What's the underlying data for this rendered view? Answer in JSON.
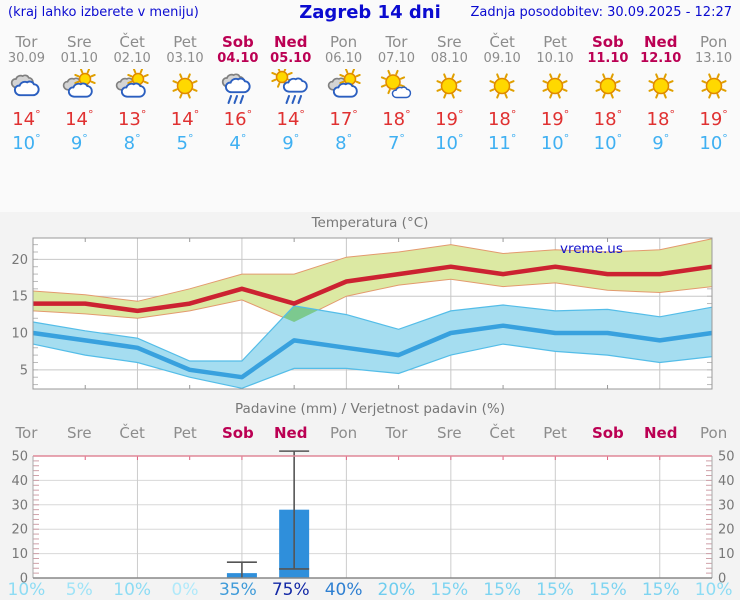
{
  "header": {
    "hint": "(kraj lahko izberete v meniju)",
    "title": "Zagreb 14 dni",
    "updated": "Zadnja posodobitev: 30.09.2025 - 12:27"
  },
  "colors": {
    "header_blue": "#0b0bd0",
    "weekday_gray": "#8c8c8c",
    "weekend_red": "#bb0053",
    "tmax_red": "#e03131",
    "tmin_blue": "#3fb0f2",
    "tmax_line": "#cc2231",
    "tmax_band_fill": "#dce9a3",
    "tmax_band_edge": "#e39a6e",
    "tmin_line": "#38a1de",
    "tmin_band_fill": "#a5ddf0",
    "tmin_band_edge": "#54bde8",
    "band_overlap_green": "#7cc98f",
    "bar_blue": "#2f8fdb",
    "whisker_gray": "#555555"
  },
  "forecast": {
    "days": [
      {
        "name": "Tor",
        "date": "30.09",
        "weekend": false,
        "icon": "cloudy",
        "tmax": "14",
        "tmin": "10"
      },
      {
        "name": "Sre",
        "date": "01.10",
        "weekend": false,
        "icon": "partly-cloudy",
        "tmax": "14",
        "tmin": "9"
      },
      {
        "name": "Čet",
        "date": "02.10",
        "weekend": false,
        "icon": "partly-cloudy",
        "tmax": "13",
        "tmin": "8"
      },
      {
        "name": "Pet",
        "date": "03.10",
        "weekend": false,
        "icon": "sunny",
        "tmax": "14",
        "tmin": "5"
      },
      {
        "name": "Sob",
        "date": "04.10",
        "weekend": true,
        "icon": "rain",
        "tmax": "16",
        "tmin": "4"
      },
      {
        "name": "Ned",
        "date": "05.10",
        "weekend": true,
        "icon": "sun-rain",
        "tmax": "14",
        "tmin": "9"
      },
      {
        "name": "Pon",
        "date": "06.10",
        "weekend": false,
        "icon": "partly-cloudy",
        "tmax": "17",
        "tmin": "8"
      },
      {
        "name": "Tor",
        "date": "07.10",
        "weekend": false,
        "icon": "mostly-sunny",
        "tmax": "18",
        "tmin": "7"
      },
      {
        "name": "Sre",
        "date": "08.10",
        "weekend": false,
        "icon": "sunny",
        "tmax": "19",
        "tmin": "10"
      },
      {
        "name": "Čet",
        "date": "09.10",
        "weekend": false,
        "icon": "sunny",
        "tmax": "18",
        "tmin": "11"
      },
      {
        "name": "Pet",
        "date": "10.10",
        "weekend": false,
        "icon": "sunny",
        "tmax": "19",
        "tmin": "10"
      },
      {
        "name": "Sob",
        "date": "11.10",
        "weekend": true,
        "icon": "sunny",
        "tmax": "18",
        "tmin": "10"
      },
      {
        "name": "Ned",
        "date": "12.10",
        "weekend": true,
        "icon": "sunny",
        "tmax": "18",
        "tmin": "9"
      },
      {
        "name": "Pon",
        "date": "13.10",
        "weekend": false,
        "icon": "sunny",
        "tmax": "19",
        "tmin": "10"
      }
    ]
  },
  "chart_data": [
    {
      "type": "line",
      "title": "Temperatura (°C)",
      "watermark": "vreme.us",
      "categories": [
        "Tor 30.09",
        "Sre 01.10",
        "Čet 02.10",
        "Pet 03.10",
        "Sob 04.10",
        "Ned 05.10",
        "Pon 06.10",
        "Tor 07.10",
        "Sre 08.10",
        "Čet 09.10",
        "Pet 10.10",
        "Sob 11.10",
        "Ned 12.10",
        "Pon 13.10"
      ],
      "ylim": [
        2.4,
        22.9
      ],
      "yticks": [
        5,
        10,
        15,
        20
      ],
      "grid": true,
      "series": [
        {
          "name": "Max temperatura",
          "values": [
            14,
            14,
            13,
            14,
            16,
            14,
            17,
            18,
            19,
            18,
            19,
            18,
            18,
            19
          ]
        },
        {
          "name": "Max razpon zgoraj",
          "values": [
            15.7,
            15.2,
            14.3,
            16.0,
            18.0,
            18.0,
            20.3,
            21.0,
            22.0,
            20.8,
            21.3,
            21.0,
            21.3,
            22.8
          ]
        },
        {
          "name": "Max razpon spodaj",
          "values": [
            13.0,
            12.6,
            12.0,
            13.0,
            14.5,
            11.5,
            15.0,
            16.5,
            17.3,
            16.3,
            16.8,
            15.8,
            15.5,
            16.3
          ]
        },
        {
          "name": "Min temperatura",
          "values": [
            10,
            9,
            8,
            5,
            4,
            9,
            8,
            7,
            10,
            11,
            10,
            10,
            9,
            10
          ]
        },
        {
          "name": "Min razpon zgoraj",
          "values": [
            11.5,
            10.3,
            9.3,
            6.2,
            6.2,
            13.7,
            12.5,
            10.5,
            13.0,
            13.8,
            13.0,
            13.2,
            12.2,
            13.5
          ]
        },
        {
          "name": "Min razpon spodaj",
          "values": [
            8.5,
            7.0,
            6.0,
            4.0,
            2.5,
            5.2,
            5.2,
            4.5,
            7.0,
            8.5,
            7.5,
            7.0,
            6.0,
            6.8
          ]
        }
      ]
    },
    {
      "type": "bar",
      "title": "Padavine (mm) / Verjetnost padavin (%)",
      "categories": [
        "Tor",
        "Sre",
        "Čet",
        "Pet",
        "Sob",
        "Ned",
        "Pon",
        "Tor",
        "Sre",
        "Čet",
        "Pet",
        "Sob",
        "Ned",
        "Pon"
      ],
      "weekend": [
        false,
        false,
        false,
        false,
        true,
        true,
        false,
        false,
        false,
        false,
        false,
        true,
        true,
        false
      ],
      "values_mm": [
        0,
        0,
        0,
        0,
        2,
        28,
        0,
        0,
        0,
        0,
        0,
        0,
        0,
        0
      ],
      "range_mm": [
        [
          0,
          0
        ],
        [
          0,
          0
        ],
        [
          0,
          0
        ],
        [
          0,
          0
        ],
        [
          0,
          6.5
        ],
        [
          3.7,
          52
        ],
        [
          0,
          0
        ],
        [
          0,
          0
        ],
        [
          0,
          0
        ],
        [
          0,
          0
        ],
        [
          0,
          0
        ],
        [
          0,
          0
        ],
        [
          0,
          0
        ],
        [
          0,
          0
        ]
      ],
      "ylim": [
        0,
        50
      ],
      "yticks": [
        0,
        10,
        20,
        30,
        40,
        50
      ],
      "probabilities": [
        {
          "label": "10%",
          "color": "#8ddcf4"
        },
        {
          "label": "5%",
          "color": "#9fe3f7"
        },
        {
          "label": "10%",
          "color": "#8ddcf4"
        },
        {
          "label": "0%",
          "color": "#b0e9fa"
        },
        {
          "label": "35%",
          "color": "#3f9bd9"
        },
        {
          "label": "75%",
          "color": "#1329a6"
        },
        {
          "label": "40%",
          "color": "#2f80d2"
        },
        {
          "label": "20%",
          "color": "#6fcdef"
        },
        {
          "label": "15%",
          "color": "#7ed4f1"
        },
        {
          "label": "15%",
          "color": "#7ed4f1"
        },
        {
          "label": "15%",
          "color": "#7ed4f1"
        },
        {
          "label": "15%",
          "color": "#7ed4f1"
        },
        {
          "label": "15%",
          "color": "#7ed4f1"
        },
        {
          "label": "10%",
          "color": "#8ddcf4"
        }
      ]
    }
  ]
}
